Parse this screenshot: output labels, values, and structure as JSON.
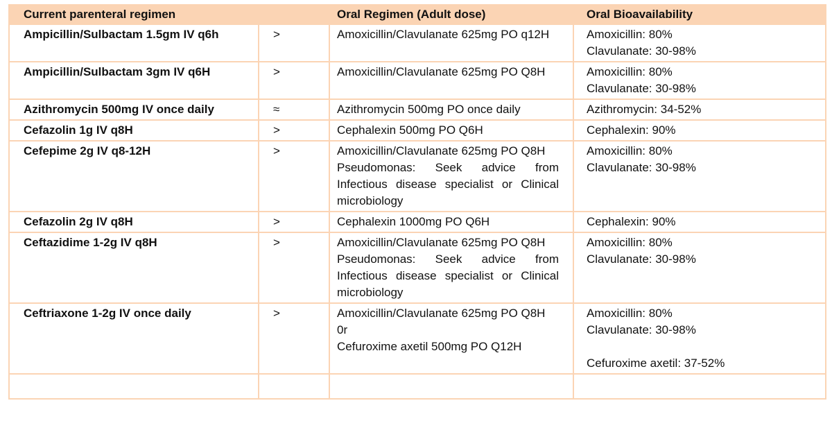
{
  "table": {
    "header": [
      "Current parenteral regimen",
      "Oral Regimen (Adult dose)",
      "Oral Bioavailability"
    ],
    "rows": [
      [
        "Ampicillin/Sulbactam 1.5gm IV q6h",
        ">",
        [
          "Amoxicillin/Clavulanate 625mg PO q12H"
        ],
        [
          "Amoxicillin: 80%",
          "Clavulanate: 30-98%"
        ]
      ],
      [
        "Ampicillin/Sulbactam 3gm IV q6H",
        ">",
        [
          "Amoxicillin/Clavulanate 625mg PO Q8H"
        ],
        [
          "Amoxicillin: 80%",
          "Clavulanate: 30-98%"
        ]
      ],
      [
        "Azithromycin 500mg IV once daily",
        "≈",
        [
          "Azithromycin 500mg PO once daily"
        ],
        [
          "Azithromycin: 34-52%"
        ]
      ],
      [
        "Cefazolin 1g IV q8H",
        ">",
        [
          "Cephalexin 500mg PO Q6H"
        ],
        [
          "Cephalexin: 90%"
        ]
      ],
      [
        "Cefepime 2g IV q8-12H",
        ">",
        [
          "Amoxicillin/Clavulanate 625mg PO Q8H",
          "Pseudomonas: Seek advice from Infectious disease specialist or Clinical microbiology"
        ],
        [
          "Amoxicillin: 80%",
          "Clavulanate: 30-98%"
        ]
      ],
      [
        "Cefazolin 2g IV q8H",
        ">",
        [
          "Cephalexin 1000mg PO Q6H"
        ],
        [
          "Cephalexin: 90%"
        ]
      ],
      [
        "Ceftazidime 1-2g IV q8H",
        ">",
        [
          "Amoxicillin/Clavulanate 625mg PO Q8H",
          "Pseudomonas: Seek advice from Infectious disease specialist or Clinical microbiology"
        ],
        [
          "Amoxicillin: 80%",
          "Clavulanate: 30-98%"
        ]
      ],
      [
        "Ceftriaxone 1-2g IV once daily",
        ">",
        [
          "Amoxicillin/Clavulanate 625mg PO Q8H",
          "0r",
          "Cefuroxime axetil 500mg PO Q12H"
        ],
        [
          "Amoxicillin: 80%",
          "Clavulanate: 30-98%",
          "Cefuroxime axetil: 37-52%"
        ]
      ]
    ]
  }
}
